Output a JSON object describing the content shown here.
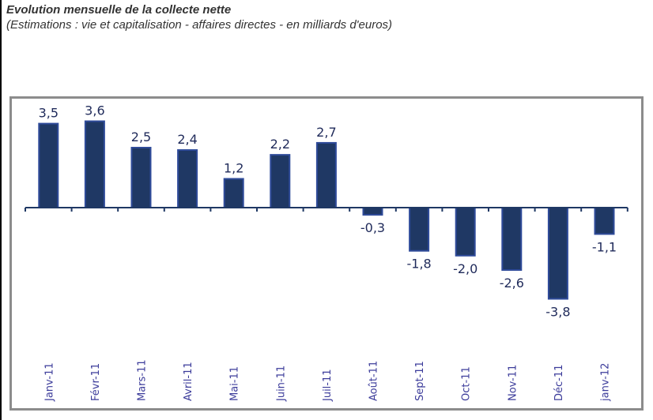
{
  "header": {
    "title": "Evolution mensuelle de la collecte nette",
    "subtitle": "(Estimations : vie et capitalisation - affaires directes - en milliards d'euros)"
  },
  "chart_data": {
    "type": "bar",
    "title": "",
    "xlabel": "",
    "ylabel": "",
    "categories": [
      "Janv-11",
      "Févr-11",
      "Mars-11",
      "Avril-11",
      "Mai-11",
      "Juin-11",
      "Juil-11",
      "Août-11",
      "Sept-11",
      "Oct-11",
      "Nov-11",
      "Déc-11",
      "janv-12"
    ],
    "values": [
      3.5,
      3.6,
      2.5,
      2.4,
      1.2,
      2.2,
      2.7,
      -0.3,
      -1.8,
      -2.0,
      -2.6,
      -3.8,
      -1.1
    ],
    "data_labels": [
      "3,5",
      "3,6",
      "2,5",
      "2,4",
      "1,2",
      "2,2",
      "2,7",
      "-0,3",
      "-1,8",
      "-2,0",
      "-2,6",
      "-3,8",
      "-1,1"
    ],
    "grid": false,
    "legend": "none",
    "colors": {
      "bar": "#1f3864",
      "bar_border": "#2f4b9a",
      "label": "#1f2a5a",
      "tick_label": "#3b3b9a",
      "frame": "#8c8c8c"
    }
  }
}
